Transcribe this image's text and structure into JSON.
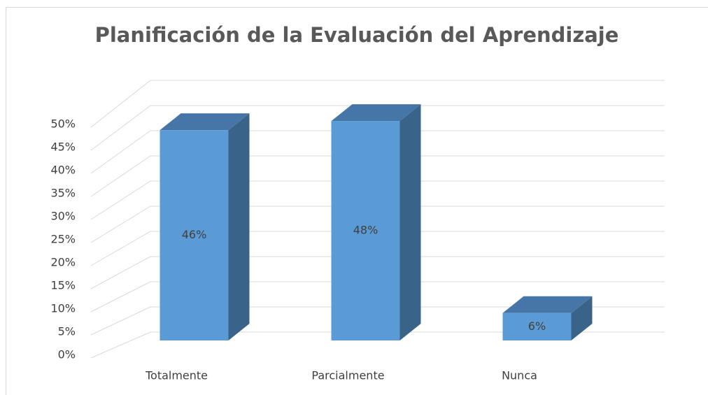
{
  "chart_data": {
    "type": "bar3d",
    "title": "Planificación de la Evaluación del Aprendizaje",
    "categories": [
      "Totalmente",
      "Parcialmente",
      "Nunca"
    ],
    "values": [
      46,
      48,
      6
    ],
    "value_labels": [
      "46%",
      "48%",
      "6%"
    ],
    "color": "#5b9bd5",
    "ylim": [
      0,
      50
    ],
    "yticks": [
      {
        "value": 0,
        "label": "0%"
      },
      {
        "value": 5,
        "label": "5%"
      },
      {
        "value": 10,
        "label": "10%"
      },
      {
        "value": 15,
        "label": "15%"
      },
      {
        "value": 20,
        "label": "20%"
      },
      {
        "value": 25,
        "label": "25%"
      },
      {
        "value": 30,
        "label": "30%"
      },
      {
        "value": 35,
        "label": "35%"
      },
      {
        "value": 40,
        "label": "40%"
      },
      {
        "value": 45,
        "label": "45%"
      },
      {
        "value": 50,
        "label": "50%"
      }
    ],
    "grid": true
  }
}
